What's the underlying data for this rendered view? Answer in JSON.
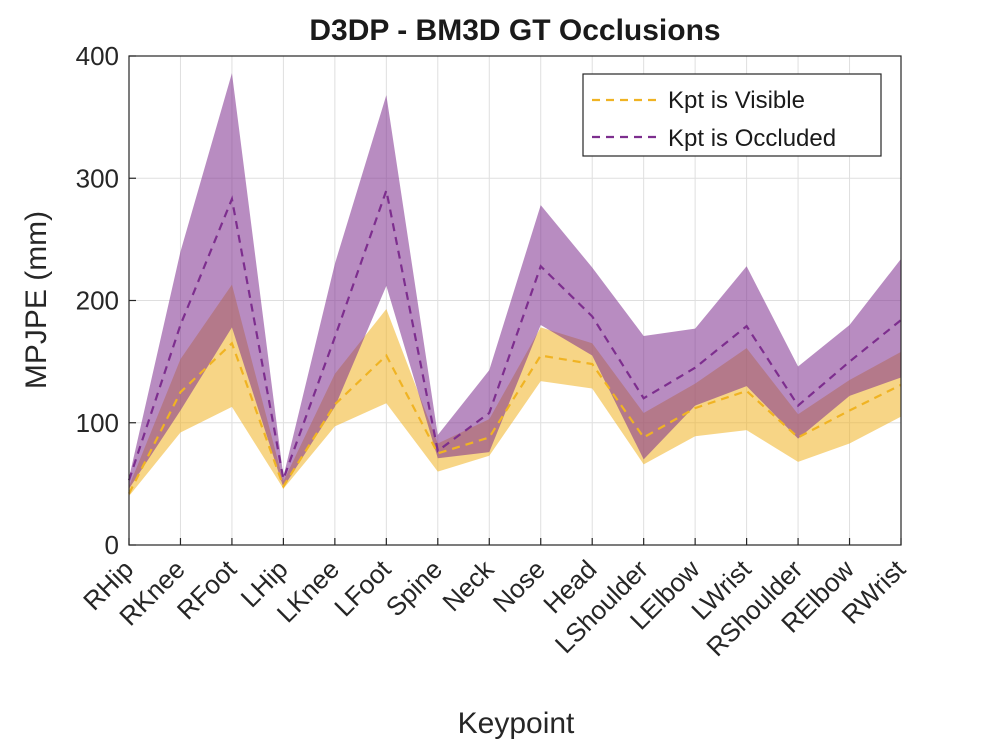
{
  "chart_data": {
    "type": "line",
    "title": "D3DP - BM3D GT Occlusions",
    "xlabel": "Keypoint",
    "ylabel": "MPJPE (mm)",
    "ylim": [
      0,
      400
    ],
    "yticks": [
      0,
      100,
      200,
      300,
      400
    ],
    "grid": true,
    "legend_position": "top-right",
    "categories": [
      "RHip",
      "RKnee",
      "RFoot",
      "LHip",
      "LKnee",
      "LFoot",
      "Spine",
      "Neck",
      "Nose",
      "Head",
      "LShoulder",
      "LElbow",
      "LWrist",
      "RShoulder",
      "RElbow",
      "RWrist"
    ],
    "series": [
      {
        "name": "Kpt is Visible",
        "color": "#f0b323",
        "mean": [
          42,
          125,
          165,
          48,
          115,
          155,
          75,
          88,
          155,
          148,
          88,
          112,
          126,
          88,
          110,
          131
        ],
        "lower": [
          40,
          92,
          113,
          46,
          97,
          116,
          60,
          73,
          134,
          128,
          66,
          89,
          94,
          68,
          83,
          105
        ],
        "upper": [
          48,
          152,
          213,
          52,
          140,
          193,
          83,
          103,
          178,
          165,
          108,
          132,
          161,
          107,
          135,
          158
        ]
      },
      {
        "name": "Kpt is Occluded",
        "color": "#7d2e8e",
        "mean": [
          53,
          180,
          283,
          54,
          170,
          290,
          77,
          108,
          228,
          187,
          120,
          145,
          179,
          114,
          150,
          184
        ],
        "lower": [
          46,
          110,
          178,
          47,
          113,
          212,
          71,
          76,
          180,
          155,
          70,
          114,
          130,
          87,
          122,
          137
        ],
        "upper": [
          55,
          240,
          386,
          56,
          230,
          368,
          90,
          143,
          278,
          227,
          171,
          177,
          228,
          146,
          180,
          234
        ]
      }
    ]
  }
}
